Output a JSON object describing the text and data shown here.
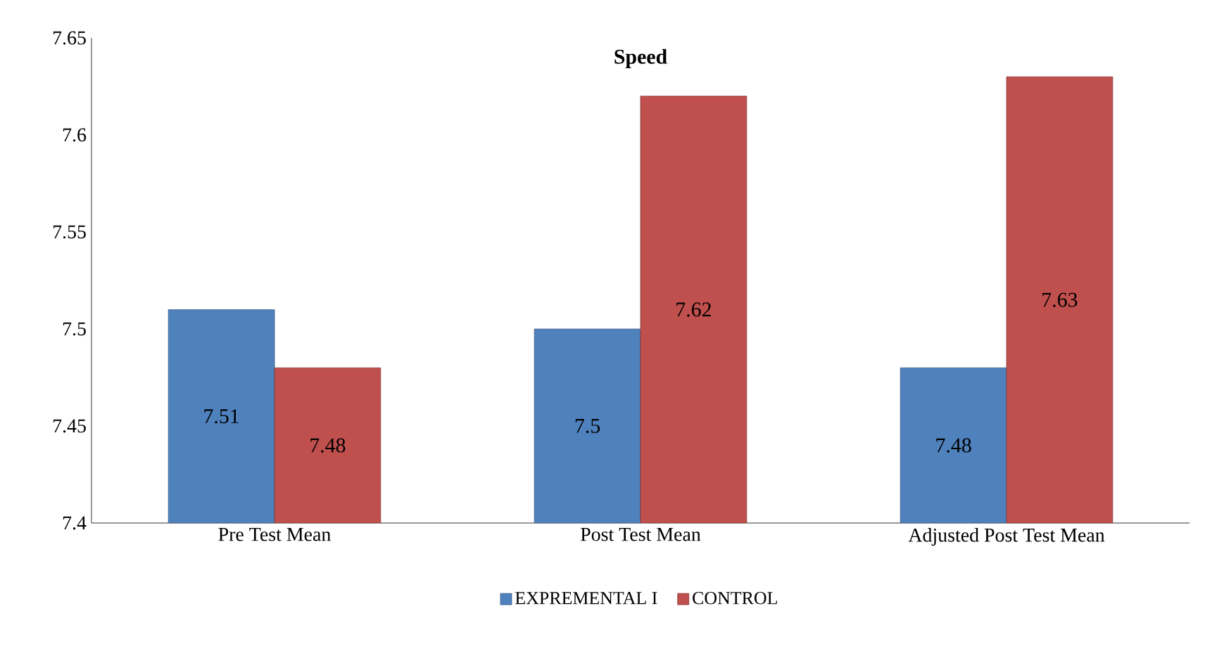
{
  "chart_data": {
    "type": "bar",
    "title": "Speed",
    "categories": [
      "Pre Test Mean",
      "Post Test Mean",
      "Adjusted Post Test Mean"
    ],
    "series": [
      {
        "name": "EXPREMENTAL I",
        "color": "#4f81bd",
        "values": [
          7.51,
          7.5,
          7.48
        ]
      },
      {
        "name": "CONTROL",
        "color": "#c0504d",
        "values": [
          7.48,
          7.62,
          7.63
        ]
      }
    ],
    "ylim": [
      7.4,
      7.65
    ],
    "yticks": [
      7.4,
      7.45,
      7.5,
      7.55,
      7.6,
      7.65
    ],
    "data_labels": true,
    "grid": false,
    "legend": "bottom"
  }
}
